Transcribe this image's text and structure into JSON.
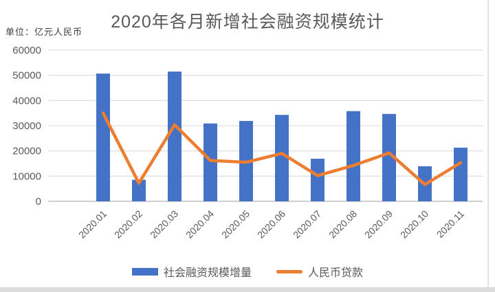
{
  "header": {
    "title": "2020年各月新增社会融资规模统计",
    "unit_label": "单位：亿元人民币"
  },
  "chart_data": {
    "type": "bar",
    "subtype": "bar+line combo",
    "title": "2020年各月新增社会融资规模统计",
    "unit": "亿元人民币",
    "categories": [
      "2020.01",
      "2020.02",
      "2020.03",
      "2020.04",
      "2020.05",
      "2020.06",
      "2020.07",
      "2020.08",
      "2020.09",
      "2020.10",
      "2020.11"
    ],
    "series": [
      {
        "name": "社会融资规模增量",
        "type": "bar",
        "color": "#4472C4",
        "values": [
          50700,
          8554,
          51500,
          30900,
          31900,
          34300,
          16900,
          35800,
          34700,
          13900,
          21300
        ]
      },
      {
        "name": "人民币贷款",
        "type": "line",
        "color": "#ED7D31",
        "values": [
          35000,
          7202,
          30400,
          16200,
          15500,
          19000,
          10200,
          14200,
          19200,
          6663,
          15300
        ]
      }
    ],
    "xlabel": "",
    "ylabel": "",
    "ylim": [
      0,
      60000
    ],
    "yticks": [
      0,
      10000,
      20000,
      30000,
      40000,
      50000,
      60000
    ],
    "grid": true,
    "gridline_color": "#d9d9d9",
    "axis_line_color": "#bfbfbf",
    "axis_label_color": "#595959",
    "legend_position": "bottom",
    "x_tick_rotation": -45
  }
}
